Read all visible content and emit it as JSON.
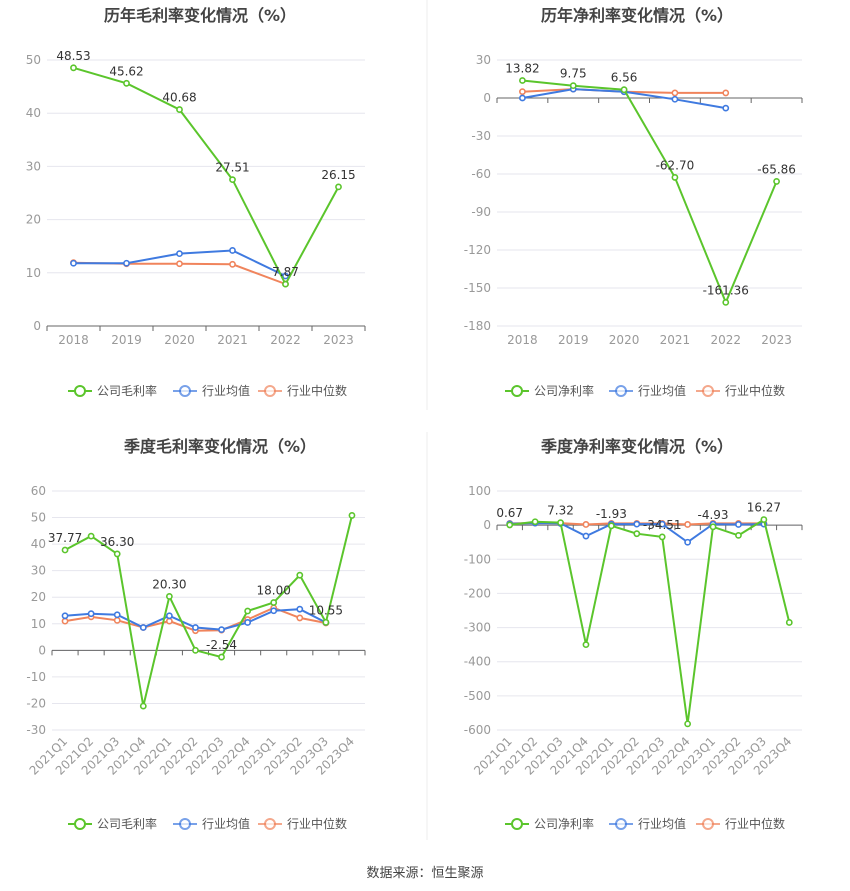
{
  "footer": {
    "source_label": "数据来源：恒生聚源"
  },
  "colors": {
    "company": "#5bc52c",
    "industry_avg": "#3f7ae0",
    "industry_median": "#f0845c",
    "grid": "#e6e6ee",
    "axis": "#666666",
    "tick_text": "#999999",
    "title_text": "#444444"
  },
  "chart_data": [
    {
      "type": "line",
      "title": "历年毛利率变化情况（%）",
      "categories": [
        "2018",
        "2019",
        "2020",
        "2021",
        "2022",
        "2023"
      ],
      "ylim": [
        0,
        50
      ],
      "yticks": [
        0,
        10,
        20,
        30,
        40,
        50
      ],
      "grid": true,
      "legend_position": "bottom",
      "series": [
        {
          "name": "公司毛利率",
          "values": [
            48.53,
            45.62,
            40.68,
            27.51,
            7.87,
            26.15
          ],
          "labels": [
            "48.53",
            "45.62",
            "40.68",
            "27.51",
            "7.87",
            "26.15"
          ]
        },
        {
          "name": "行业均值",
          "values": [
            11.8,
            11.8,
            13.6,
            14.2,
            9.4,
            null
          ]
        },
        {
          "name": "行业中位数",
          "values": [
            11.9,
            11.7,
            11.7,
            11.6,
            7.9,
            null
          ]
        }
      ]
    },
    {
      "type": "line",
      "title": "历年净利率变化情况（%）",
      "categories": [
        "2018",
        "2019",
        "2020",
        "2021",
        "2022",
        "2023"
      ],
      "ylim": [
        -180,
        30
      ],
      "yticks": [
        30,
        0,
        -30,
        -60,
        -90,
        -120,
        -150,
        -180
      ],
      "grid": true,
      "legend_position": "bottom",
      "series": [
        {
          "name": "公司净利率",
          "values": [
            13.82,
            9.75,
            6.56,
            -62.7,
            -161.36,
            -65.86
          ],
          "labels": [
            "13.82",
            "9.75",
            "6.56",
            "-62.70",
            "-161.36",
            "-65.86"
          ]
        },
        {
          "name": "行业均值",
          "values": [
            0.0,
            7.0,
            5.0,
            -1.0,
            -8.0,
            null
          ]
        },
        {
          "name": "行业中位数",
          "values": [
            5.0,
            7.0,
            5.0,
            4.0,
            4.0,
            null
          ]
        }
      ]
    },
    {
      "type": "line",
      "title": "季度毛利率变化情况（%）",
      "categories": [
        "2021Q1",
        "2021Q2",
        "2021Q3",
        "2021Q4",
        "2022Q1",
        "2022Q2",
        "2022Q3",
        "2022Q4",
        "2023Q1",
        "2023Q2",
        "2023Q3",
        "2023Q4"
      ],
      "ylim": [
        -30,
        60
      ],
      "yticks": [
        60,
        50,
        40,
        30,
        20,
        10,
        0,
        -10,
        -20,
        -30
      ],
      "grid": true,
      "legend_position": "bottom",
      "series": [
        {
          "name": "公司毛利率",
          "values": [
            37.77,
            43.0,
            36.3,
            -21.0,
            20.3,
            0.0,
            -2.54,
            14.8,
            18.0,
            28.3,
            10.55,
            50.8
          ],
          "labels": [
            "37.77",
            "",
            "36.30",
            "",
            "20.30",
            "",
            "-2.54",
            "",
            "18.00",
            "",
            "10.55",
            ""
          ]
        },
        {
          "name": "行业均值",
          "values": [
            13.0,
            13.8,
            13.4,
            8.6,
            13.0,
            8.6,
            7.8,
            10.5,
            14.9,
            15.5,
            10.5,
            null
          ]
        },
        {
          "name": "行业中位数",
          "values": [
            11.0,
            12.6,
            11.3,
            8.6,
            11.0,
            7.4,
            7.6,
            11.6,
            16.0,
            12.2,
            10.3,
            null
          ]
        }
      ]
    },
    {
      "type": "line",
      "title": "季度净利率变化情况（%）",
      "categories": [
        "2021Q1",
        "2021Q2",
        "2021Q3",
        "2021Q4",
        "2022Q1",
        "2022Q2",
        "2022Q3",
        "2022Q4",
        "2023Q1",
        "2023Q2",
        "2023Q3",
        "2023Q4"
      ],
      "ylim": [
        -600,
        100
      ],
      "yticks": [
        100,
        0,
        -100,
        -200,
        -300,
        -400,
        -500,
        -600
      ],
      "grid": true,
      "legend_position": "bottom",
      "series": [
        {
          "name": "公司净利率",
          "values": [
            0.67,
            10.0,
            7.32,
            -350.0,
            -1.93,
            -25.0,
            -34.51,
            -582.0,
            -4.93,
            -30.0,
            16.27,
            -285.0
          ],
          "labels": [
            "0.67",
            "",
            "7.32",
            "",
            "-1.93",
            "",
            "-34.51",
            "",
            "-4.93",
            "",
            "16.27",
            ""
          ]
        },
        {
          "name": "行业均值",
          "values": [
            4.0,
            6.0,
            5.0,
            -32.0,
            3.0,
            3.0,
            3.0,
            -50.0,
            3.0,
            2.0,
            3.0,
            null
          ]
        },
        {
          "name": "行业中位数",
          "values": [
            5.0,
            6.0,
            6.0,
            2.0,
            5.0,
            5.0,
            5.0,
            2.0,
            5.0,
            5.0,
            5.0,
            null
          ]
        }
      ]
    }
  ]
}
